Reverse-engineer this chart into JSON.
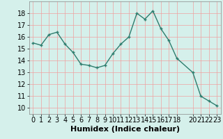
{
  "x": [
    0,
    1,
    2,
    3,
    4,
    5,
    6,
    7,
    8,
    9,
    10,
    11,
    12,
    13,
    14,
    15,
    16,
    17,
    18,
    20,
    21,
    22,
    23
  ],
  "y": [
    15.5,
    15.3,
    16.2,
    16.4,
    15.4,
    14.7,
    13.7,
    13.6,
    13.4,
    13.6,
    14.6,
    15.4,
    16.0,
    18.0,
    17.5,
    18.2,
    16.7,
    15.7,
    14.2,
    13.0,
    11.0,
    10.6,
    10.2
  ],
  "line_color": "#2e7d6e",
  "marker": "+",
  "marker_size": 3,
  "bg_color": "#d5f0eb",
  "grid_color": "#f0a0a0",
  "xlabel": "Humidex (Indice chaleur)",
  "xlabel_fontsize": 8,
  "ylim": [
    9.5,
    19.0
  ],
  "xlim": [
    -0.5,
    23.5
  ],
  "yticks": [
    10,
    11,
    12,
    13,
    14,
    15,
    16,
    17,
    18
  ],
  "xticks": [
    0,
    1,
    2,
    3,
    4,
    5,
    6,
    7,
    8,
    9,
    10,
    11,
    12,
    13,
    14,
    15,
    16,
    17,
    18,
    20,
    21,
    22,
    23
  ],
  "tick_fontsize": 7,
  "line_width": 1.0,
  "marker_edge_width": 1.0
}
